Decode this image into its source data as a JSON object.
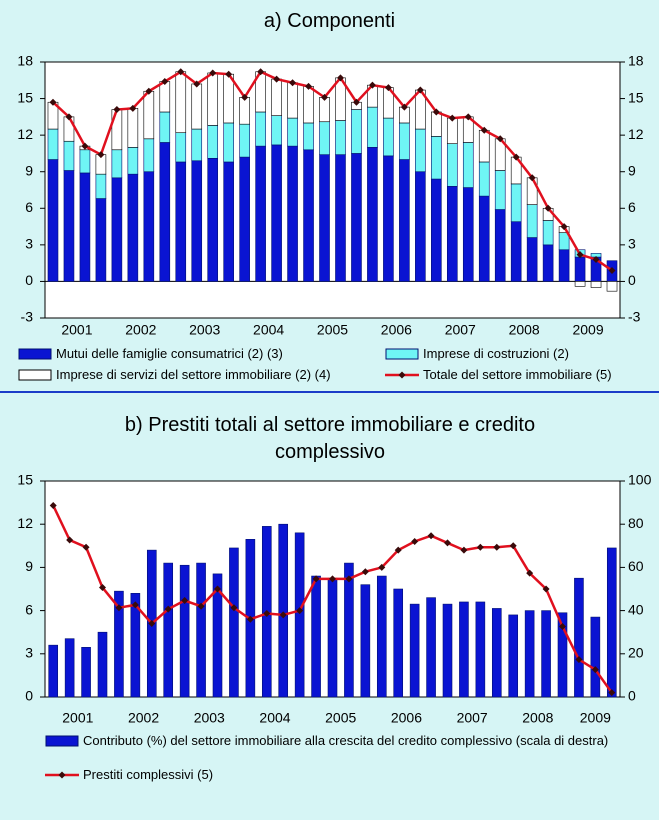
{
  "chart_data": [
    {
      "type": "bar",
      "stacked": true,
      "title": "a) Componenti",
      "categories": [
        null,
        null,
        null,
        null,
        null,
        null,
        null,
        null,
        null,
        null,
        null,
        null,
        null,
        null,
        null,
        null,
        null,
        null,
        null,
        null,
        null,
        null,
        null,
        null,
        null,
        null,
        null,
        null,
        null,
        null,
        null,
        null,
        null,
        null,
        null,
        null
      ],
      "year_labels": [
        "2001",
        "2002",
        "2003",
        "2004",
        "2005",
        "2006",
        "2007",
        "2008",
        "2009"
      ],
      "ylim": [
        -3,
        18
      ],
      "yticks": [
        -3,
        0,
        3,
        6,
        9,
        12,
        15,
        18
      ],
      "y2lim": [
        -3,
        18
      ],
      "y2ticks": [
        -3,
        0,
        3,
        6,
        9,
        12,
        15,
        18
      ],
      "grid": false,
      "series": [
        {
          "name": "Mutui delle famiglie consumatrici (2) (3)",
          "kind": "bar",
          "color": "#0a14d2",
          "values": [
            10.0,
            9.1,
            8.9,
            6.8,
            8.5,
            8.8,
            9.0,
            11.4,
            9.8,
            9.9,
            10.1,
            9.8,
            10.2,
            11.1,
            11.2,
            11.1,
            10.8,
            10.4,
            10.4,
            10.5,
            11.0,
            10.3,
            10.0,
            9.0,
            8.4,
            7.8,
            7.7,
            7.0,
            5.9,
            4.9,
            3.6,
            3.0,
            2.6,
            2.0,
            2.0,
            1.7
          ]
        },
        {
          "name": "Imprese di costruzioni (2)",
          "kind": "bar",
          "color": "#6ff5f5",
          "values": [
            2.5,
            2.4,
            1.9,
            2.0,
            2.3,
            2.2,
            2.7,
            2.5,
            2.4,
            2.6,
            2.7,
            3.2,
            2.7,
            2.8,
            2.4,
            2.3,
            2.2,
            2.7,
            2.8,
            3.6,
            3.3,
            3.1,
            3.0,
            3.5,
            3.5,
            3.5,
            3.7,
            2.8,
            3.2,
            3.1,
            2.7,
            2.0,
            1.4,
            0.6,
            0.3,
            0.0
          ]
        },
        {
          "name": "Imprese di servizi del settore immobiliare (2) (4)",
          "kind": "bar",
          "color": "#ffffff",
          "values": [
            2.2,
            2.0,
            0.3,
            1.6,
            3.3,
            3.2,
            3.9,
            2.5,
            5.0,
            3.7,
            4.3,
            4.0,
            2.2,
            3.3,
            3.0,
            2.9,
            3.0,
            2.0,
            3.5,
            0.6,
            1.8,
            2.5,
            1.3,
            3.2,
            2.0,
            2.1,
            2.1,
            2.6,
            2.6,
            2.2,
            2.2,
            1.0,
            0.5,
            -0.4,
            -0.5,
            -0.8
          ]
        },
        {
          "name": "Totale del settore immobiliare (5)",
          "kind": "line",
          "color": "#e0101e",
          "values": [
            14.7,
            13.5,
            11.1,
            10.4,
            14.1,
            14.2,
            15.6,
            16.4,
            17.2,
            16.2,
            17.1,
            17.0,
            15.1,
            17.2,
            16.6,
            16.3,
            16.0,
            15.1,
            16.7,
            14.7,
            16.1,
            15.9,
            14.3,
            15.7,
            13.9,
            13.4,
            13.5,
            12.4,
            11.7,
            10.2,
            8.5,
            6.0,
            4.5,
            2.2,
            1.8,
            0.9
          ]
        }
      ]
    },
    {
      "type": "bar",
      "stacked": false,
      "title": "b) Prestiti totali al settore immobiliare e credito complessivo",
      "categories": [
        null,
        null,
        null,
        null,
        null,
        null,
        null,
        null,
        null,
        null,
        null,
        null,
        null,
        null,
        null,
        null,
        null,
        null,
        null,
        null,
        null,
        null,
        null,
        null,
        null,
        null,
        null,
        null,
        null,
        null,
        null,
        null,
        null,
        null,
        null
      ],
      "year_labels": [
        "2001",
        "2002",
        "2003",
        "2004",
        "2005",
        "2006",
        "2007",
        "2008",
        "2009"
      ],
      "ylim": [
        0,
        15
      ],
      "yticks": [
        0,
        3,
        6,
        9,
        12,
        15
      ],
      "y2lim": [
        0,
        100
      ],
      "y2ticks": [
        0,
        20,
        40,
        60,
        80,
        100
      ],
      "grid": false,
      "series": [
        {
          "name": "Contributo (%) del settore immobiliare alla crescita del credito complessivo (scala di destra)",
          "kind": "bar",
          "axis": "y2",
          "color": "#0a14d2",
          "values": [
            24,
            27,
            23,
            30,
            49,
            48,
            68,
            62,
            61,
            62,
            57,
            69,
            73,
            79,
            80,
            76,
            56,
            55,
            62,
            52,
            56,
            50,
            43,
            46,
            43,
            44,
            44,
            41,
            38,
            40,
            40,
            39,
            55,
            37,
            69
          ]
        },
        {
          "name": "Prestiti complessivi (5)",
          "kind": "line",
          "color": "#e0101e",
          "values": [
            13.3,
            10.9,
            10.4,
            7.6,
            6.2,
            6.4,
            5.1,
            6.1,
            6.7,
            6.3,
            7.5,
            6.2,
            5.4,
            5.8,
            5.7,
            6.0,
            8.2,
            8.2,
            8.2,
            8.7,
            9.0,
            10.2,
            10.8,
            11.2,
            10.7,
            10.2,
            10.4,
            10.4,
            10.5,
            8.6,
            7.5,
            4.9,
            2.6,
            1.9,
            0.3
          ]
        }
      ]
    }
  ]
}
